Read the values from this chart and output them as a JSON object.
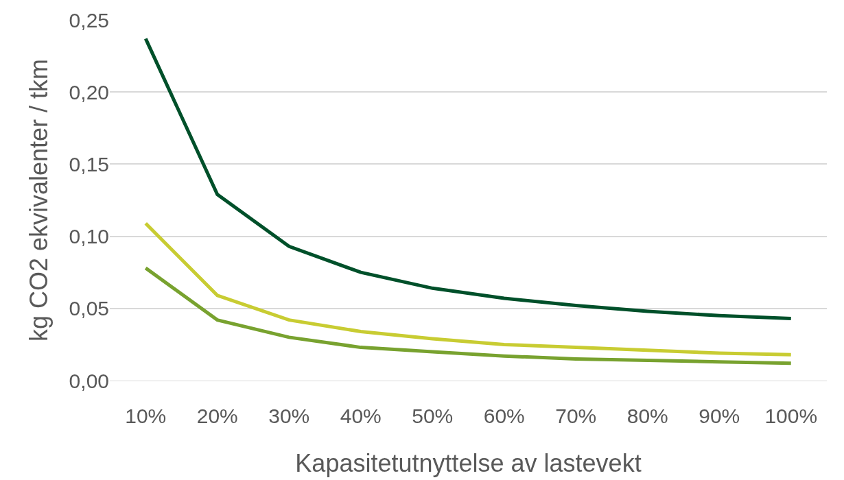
{
  "chart_data": {
    "type": "line",
    "xlabel": "Kapasitetutnyttelse av lastevekt",
    "ylabel": "kg CO2 ekvivalenter / tkm",
    "categories": [
      "10%",
      "20%",
      "30%",
      "40%",
      "50%",
      "60%",
      "70%",
      "80%",
      "90%",
      "100%"
    ],
    "series": [
      {
        "color": "#00502a",
        "values": [
          0.237,
          0.129,
          0.093,
          0.075,
          0.064,
          0.057,
          0.052,
          0.048,
          0.045,
          0.043
        ]
      },
      {
        "color": "#c8cc32",
        "values": [
          0.109,
          0.059,
          0.042,
          0.034,
          0.029,
          0.025,
          0.023,
          0.021,
          0.019,
          0.018
        ]
      },
      {
        "color": "#78a22f",
        "values": [
          0.078,
          0.042,
          0.03,
          0.023,
          0.02,
          0.017,
          0.015,
          0.014,
          0.013,
          0.012
        ]
      }
    ],
    "ylim": [
      0,
      0.25
    ],
    "yticks": [
      {
        "value": 0,
        "label": "0,00"
      },
      {
        "value": 0.05,
        "label": "0,05"
      },
      {
        "value": 0.1,
        "label": "0,10"
      },
      {
        "value": 0.15,
        "label": "0,15"
      },
      {
        "value": 0.2,
        "label": "0,20"
      },
      {
        "value": 0.25,
        "label": "0,25"
      }
    ],
    "grid": "y",
    "marker": "none",
    "line_style": "solid"
  }
}
